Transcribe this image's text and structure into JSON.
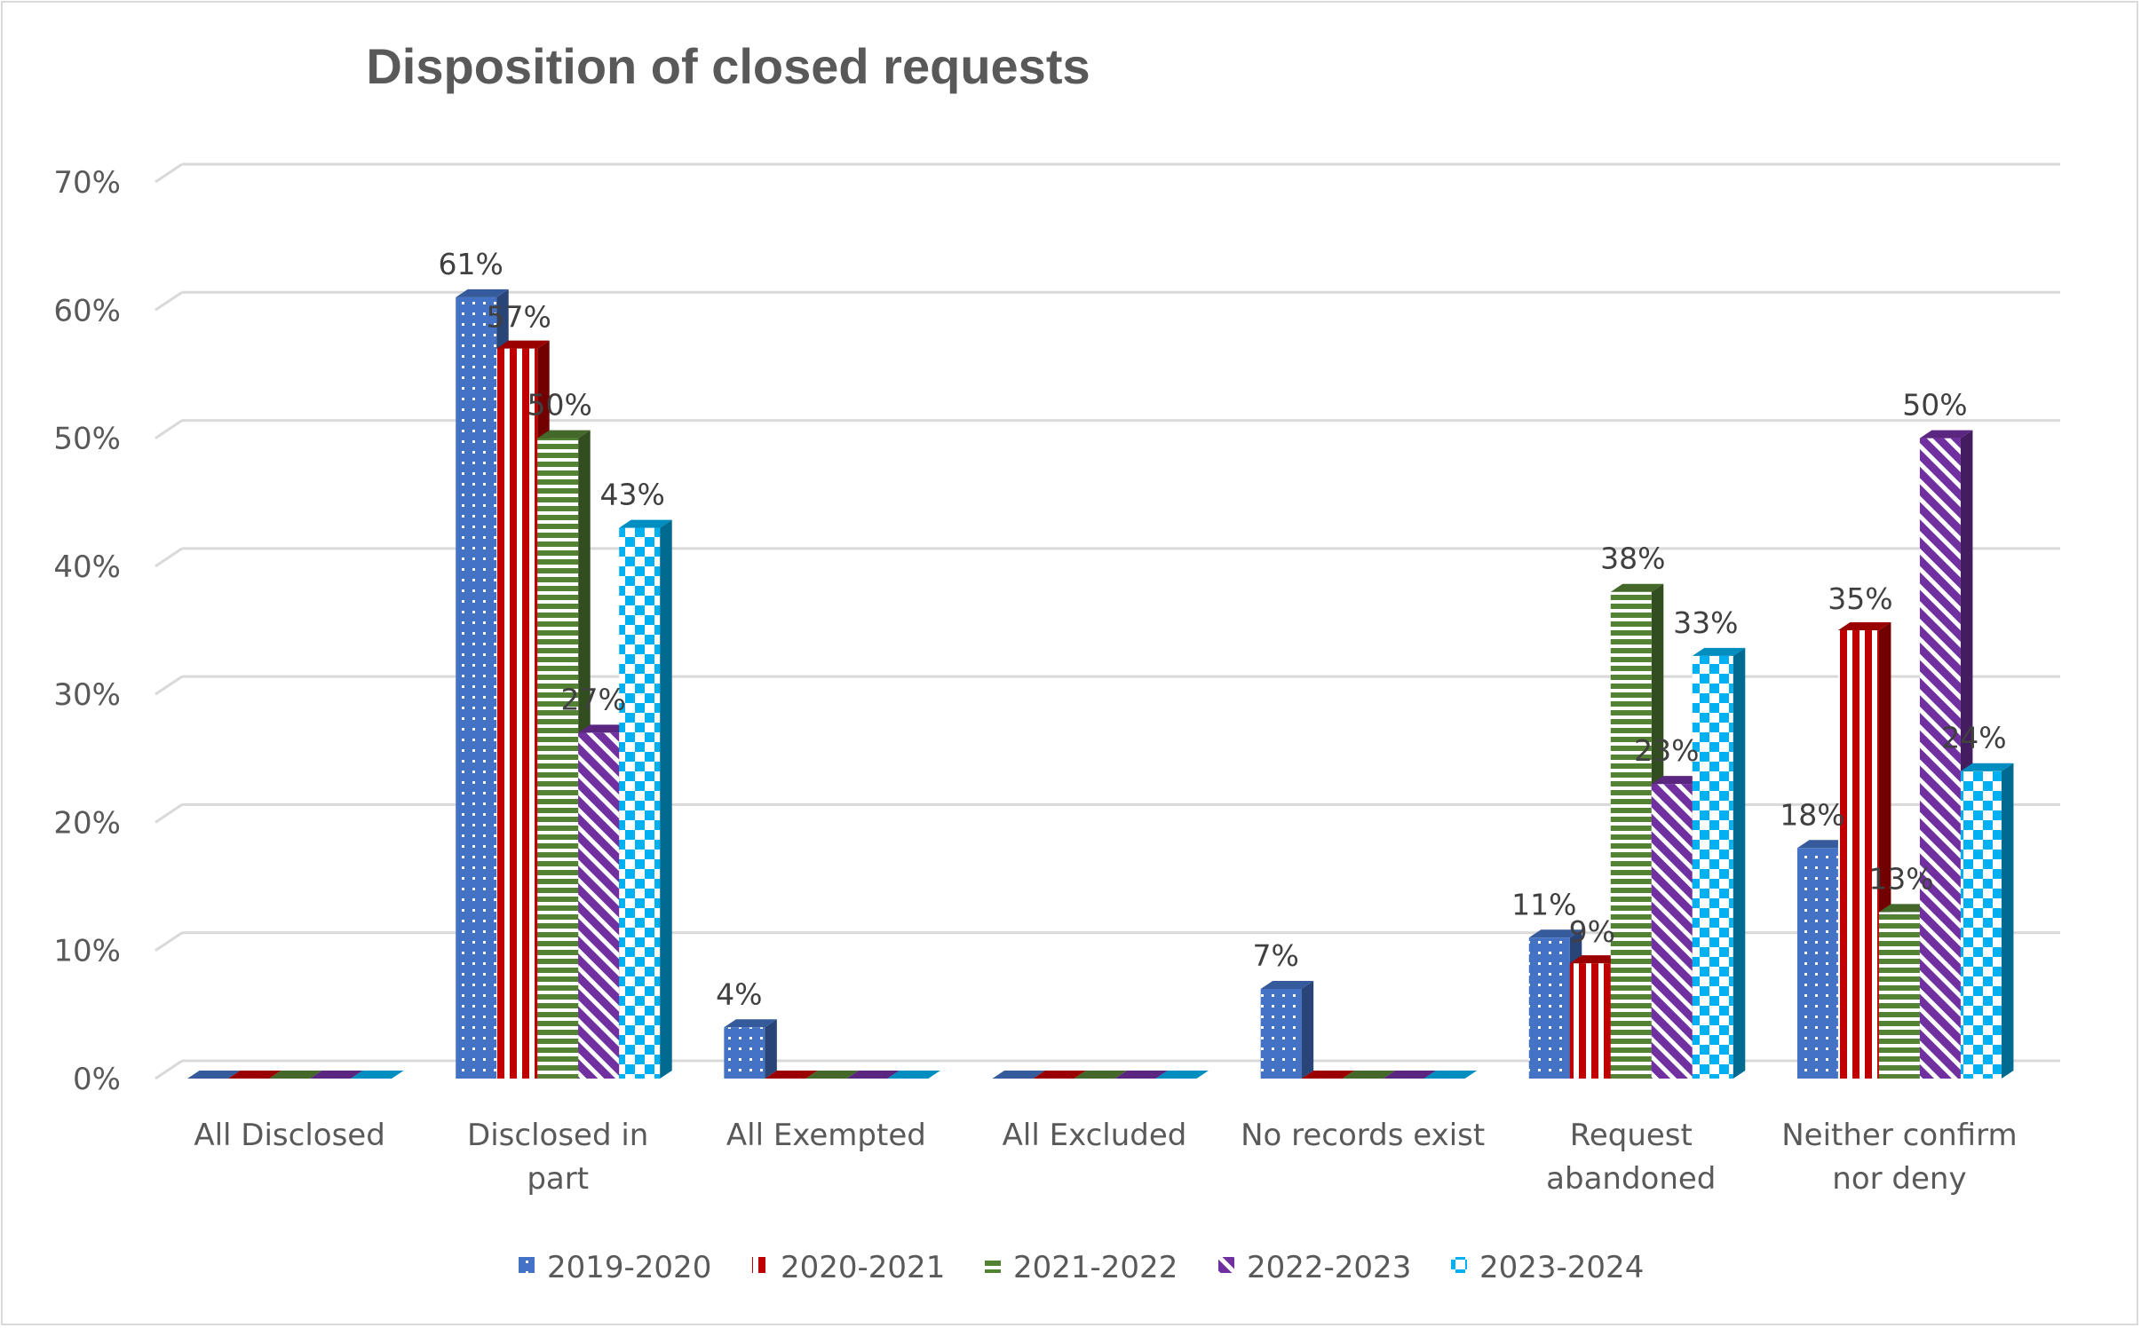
{
  "chart_data": {
    "type": "bar",
    "title": "Disposition of closed requests",
    "categories": [
      [
        "All Disclosed"
      ],
      [
        "Disclosed in",
        "part"
      ],
      [
        "All Exempted"
      ],
      [
        "All Excluded"
      ],
      [
        "No records exist"
      ],
      [
        "Request",
        "abandoned"
      ],
      [
        "Neither confirm",
        "nor deny"
      ]
    ],
    "ylim": [
      0,
      70
    ],
    "yticks": [
      0,
      10,
      20,
      30,
      40,
      50,
      60,
      70
    ],
    "ytick_labels": [
      "0%",
      "10%",
      "20%",
      "30%",
      "40%",
      "50%",
      "60%",
      "70%"
    ],
    "grid": true,
    "legend_position": "bottom",
    "series": [
      {
        "name": "2019-2020",
        "color": "#4472C4",
        "pattern": "dots",
        "values": [
          0,
          61,
          4,
          0,
          7,
          11,
          18
        ],
        "labels": [
          "",
          "61%",
          "4%",
          "",
          "7%",
          "11%",
          "18%"
        ]
      },
      {
        "name": "2020-2021",
        "color": "#C00000",
        "pattern": "vertical-stripes",
        "values": [
          0,
          57,
          0,
          0,
          0,
          9,
          35
        ],
        "labels": [
          "",
          "57%",
          "",
          "",
          "",
          "9%",
          "35%"
        ]
      },
      {
        "name": "2021-2022",
        "color": "#548235",
        "pattern": "horizontal-stripes",
        "values": [
          0,
          50,
          0,
          0,
          0,
          38,
          13
        ],
        "labels": [
          "",
          "50%",
          "",
          "",
          "",
          "38%",
          "13%"
        ]
      },
      {
        "name": "2022-2023",
        "color": "#7030A0",
        "pattern": "diagonal-stripes",
        "values": [
          0,
          27,
          0,
          0,
          0,
          23,
          50
        ],
        "labels": [
          "",
          "27%",
          "",
          "",
          "",
          "23%",
          "50%"
        ]
      },
      {
        "name": "2023-2024",
        "color": "#00B0F0",
        "pattern": "checkerboard",
        "values": [
          0,
          43,
          0,
          0,
          0,
          33,
          24
        ],
        "labels": [
          "",
          "43%",
          "",
          "",
          "",
          "33%",
          "24%"
        ]
      }
    ]
  }
}
